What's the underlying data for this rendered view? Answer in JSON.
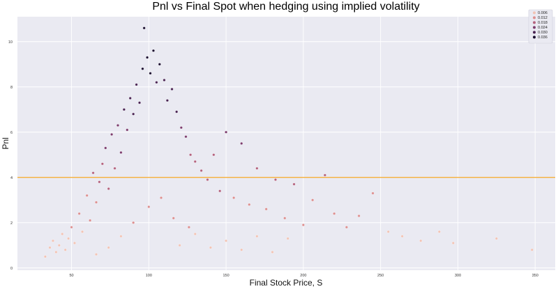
{
  "chart_data": {
    "type": "scatter",
    "title": "Pnl vs Final Spot when hedging using implied volatility",
    "xlabel": "Final Stock Price, S",
    "ylabel": "Pnl",
    "xlim": [
      15,
      363
    ],
    "ylim": [
      -0.1,
      11.1
    ],
    "xticks": [
      "50",
      "100",
      "150",
      "200",
      "250",
      "300",
      "350"
    ],
    "xtick_values": [
      50,
      100,
      150,
      200,
      250,
      300,
      350
    ],
    "yticks": [
      "0",
      "2",
      "4",
      "6",
      "8",
      "10"
    ],
    "ytick_values": [
      0,
      2,
      4,
      6,
      8,
      10
    ],
    "grid": true,
    "background": "#eaeaf2",
    "grid_color": "#ffffff",
    "hline": {
      "y": 4.0,
      "color": "#f5a623"
    },
    "hue_palette": [
      "#f2c3b4",
      "#dd8f8f",
      "#b5637e",
      "#7e3e6e",
      "#4a2352",
      "#1a0d2e"
    ],
    "legend": {
      "placement": "top-right",
      "entries": [
        "0.006",
        "0.012",
        "0.018",
        "0.024",
        "0.030",
        "0.036"
      ]
    },
    "points": [
      {
        "x": 33,
        "y": 0.5
      },
      {
        "x": 36,
        "y": 0.9
      },
      {
        "x": 38,
        "y": 1.2
      },
      {
        "x": 40,
        "y": 0.7
      },
      {
        "x": 42,
        "y": 1.0
      },
      {
        "x": 44,
        "y": 1.5
      },
      {
        "x": 46,
        "y": 0.8
      },
      {
        "x": 48,
        "y": 1.3
      },
      {
        "x": 50,
        "y": 1.8
      },
      {
        "x": 52,
        "y": 1.1
      },
      {
        "x": 55,
        "y": 2.4
      },
      {
        "x": 57,
        "y": 1.6
      },
      {
        "x": 60,
        "y": 3.2
      },
      {
        "x": 62,
        "y": 2.1
      },
      {
        "x": 64,
        "y": 4.2
      },
      {
        "x": 66,
        "y": 2.9
      },
      {
        "x": 68,
        "y": 3.8
      },
      {
        "x": 70,
        "y": 4.6
      },
      {
        "x": 72,
        "y": 5.3
      },
      {
        "x": 74,
        "y": 3.5
      },
      {
        "x": 76,
        "y": 5.9
      },
      {
        "x": 78,
        "y": 4.4
      },
      {
        "x": 80,
        "y": 6.3
      },
      {
        "x": 82,
        "y": 5.1
      },
      {
        "x": 84,
        "y": 7.0
      },
      {
        "x": 86,
        "y": 6.1
      },
      {
        "x": 88,
        "y": 7.5
      },
      {
        "x": 90,
        "y": 6.8
      },
      {
        "x": 92,
        "y": 8.1
      },
      {
        "x": 94,
        "y": 7.3
      },
      {
        "x": 96,
        "y": 8.8
      },
      {
        "x": 97,
        "y": 10.6
      },
      {
        "x": 99,
        "y": 9.3
      },
      {
        "x": 101,
        "y": 8.6
      },
      {
        "x": 103,
        "y": 9.6
      },
      {
        "x": 105,
        "y": 8.2
      },
      {
        "x": 107,
        "y": 9.0
      },
      {
        "x": 110,
        "y": 8.3
      },
      {
        "x": 112,
        "y": 7.4
      },
      {
        "x": 115,
        "y": 7.9
      },
      {
        "x": 118,
        "y": 6.9
      },
      {
        "x": 121,
        "y": 6.2
      },
      {
        "x": 124,
        "y": 5.8
      },
      {
        "x": 127,
        "y": 5.0
      },
      {
        "x": 130,
        "y": 4.7
      },
      {
        "x": 134,
        "y": 4.3
      },
      {
        "x": 138,
        "y": 3.9
      },
      {
        "x": 142,
        "y": 5.0
      },
      {
        "x": 146,
        "y": 3.4
      },
      {
        "x": 150,
        "y": 6.0
      },
      {
        "x": 155,
        "y": 3.1
      },
      {
        "x": 160,
        "y": 5.5
      },
      {
        "x": 165,
        "y": 2.8
      },
      {
        "x": 170,
        "y": 4.4
      },
      {
        "x": 176,
        "y": 2.6
      },
      {
        "x": 182,
        "y": 3.9
      },
      {
        "x": 188,
        "y": 2.2
      },
      {
        "x": 194,
        "y": 3.7
      },
      {
        "x": 200,
        "y": 1.9
      },
      {
        "x": 206,
        "y": 3.0
      },
      {
        "x": 214,
        "y": 4.1
      },
      {
        "x": 220,
        "y": 2.4
      },
      {
        "x": 228,
        "y": 1.8
      },
      {
        "x": 236,
        "y": 2.3
      },
      {
        "x": 245,
        "y": 3.3
      },
      {
        "x": 255,
        "y": 1.6
      },
      {
        "x": 264,
        "y": 1.4
      },
      {
        "x": 276,
        "y": 1.2
      },
      {
        "x": 288,
        "y": 1.6
      },
      {
        "x": 297,
        "y": 1.1
      },
      {
        "x": 325,
        "y": 1.3
      },
      {
        "x": 348,
        "y": 0.8
      },
      {
        "x": 120,
        "y": 1.0
      },
      {
        "x": 130,
        "y": 1.5
      },
      {
        "x": 140,
        "y": 0.9
      },
      {
        "x": 150,
        "y": 1.2
      },
      {
        "x": 160,
        "y": 0.8
      },
      {
        "x": 170,
        "y": 1.4
      },
      {
        "x": 180,
        "y": 0.7
      },
      {
        "x": 190,
        "y": 1.3
      },
      {
        "x": 66,
        "y": 0.6
      },
      {
        "x": 74,
        "y": 0.9
      },
      {
        "x": 82,
        "y": 1.4
      },
      {
        "x": 90,
        "y": 2.0
      },
      {
        "x": 100,
        "y": 2.7
      },
      {
        "x": 108,
        "y": 3.1
      },
      {
        "x": 116,
        "y": 2.2
      },
      {
        "x": 126,
        "y": 1.8
      }
    ]
  }
}
